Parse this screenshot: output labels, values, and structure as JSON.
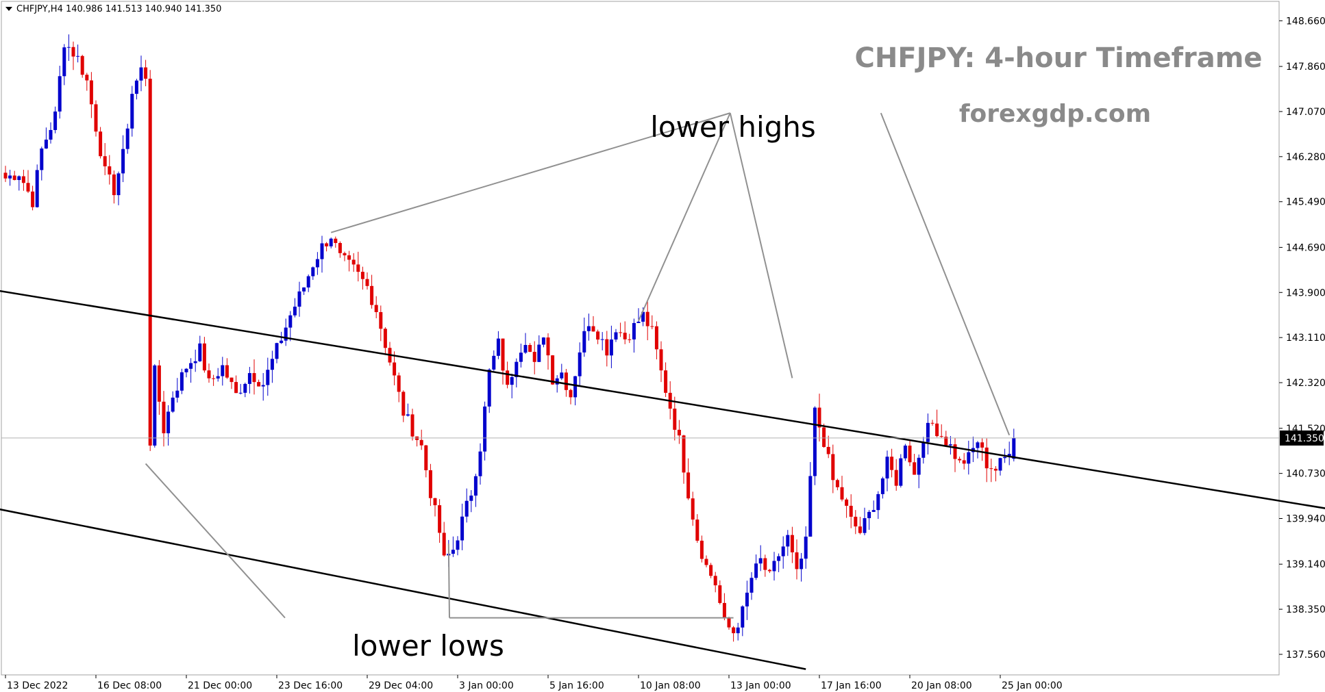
{
  "header": {
    "symbol_info": "CHFJPY,H4  140.986 141.513 140.940 141.350"
  },
  "chart_data": {
    "type": "candlestick",
    "symbol": "CHFJPY",
    "timeframe": "H4",
    "ohlc_header": {
      "open": 140.986,
      "high": 141.513,
      "low": 140.94,
      "close": 141.35
    },
    "current_price": 141.35,
    "title": "CHFJPY: 4-hour Timeframe",
    "watermark": "forexgdp.com",
    "ylim": [
      137.2,
      149.0
    ],
    "y_ticks": [
      "148.660",
      "147.860",
      "147.070",
      "146.280",
      "145.490",
      "144.690",
      "143.900",
      "143.110",
      "142.320",
      "141.520",
      "140.730",
      "139.940",
      "139.140",
      "138.350",
      "137.560"
    ],
    "x_ticks": [
      "13 Dec 2022",
      "16 Dec 08:00",
      "21 Dec 00:00",
      "23 Dec 16:00",
      "29 Dec 04:00",
      "3 Jan 00:00",
      "5 Jan 16:00",
      "10 Jan 08:00",
      "13 Jan 00:00",
      "17 Jan 16:00",
      "20 Jan 08:00",
      "25 Jan 00:00"
    ],
    "x_tick_index": [
      0,
      20,
      40,
      60,
      80,
      100,
      120,
      140,
      160,
      180,
      200,
      220
    ],
    "bar_count": 300,
    "close_path": [
      [
        0,
        145.9
      ],
      [
        3,
        146.0
      ],
      [
        6,
        145.5
      ],
      [
        8,
        146.4
      ],
      [
        11,
        147.0
      ],
      [
        13,
        148.3
      ],
      [
        16,
        148.0
      ],
      [
        18,
        147.6
      ],
      [
        20,
        146.8
      ],
      [
        22,
        146.0
      ],
      [
        24,
        145.7
      ],
      [
        26,
        146.3
      ],
      [
        28,
        147.4
      ],
      [
        30,
        147.8
      ],
      [
        31,
        147.7
      ],
      [
        32,
        141.3
      ],
      [
        33,
        142.5
      ],
      [
        35,
        141.5
      ],
      [
        37,
        142.1
      ],
      [
        40,
        142.6
      ],
      [
        43,
        142.9
      ],
      [
        45,
        142.3
      ],
      [
        48,
        142.6
      ],
      [
        51,
        142.1
      ],
      [
        54,
        142.5
      ],
      [
        57,
        142.3
      ],
      [
        60,
        142.9
      ],
      [
        63,
        143.5
      ],
      [
        66,
        144.0
      ],
      [
        68,
        144.4
      ],
      [
        70,
        144.7
      ],
      [
        72,
        144.9
      ],
      [
        74,
        144.5
      ],
      [
        77,
        144.3
      ],
      [
        80,
        144.0
      ],
      [
        82,
        143.6
      ],
      [
        84,
        143.0
      ],
      [
        86,
        142.4
      ],
      [
        88,
        141.8
      ],
      [
        90,
        141.5
      ],
      [
        92,
        141.2
      ],
      [
        94,
        140.4
      ],
      [
        96,
        139.7
      ],
      [
        97,
        139.2
      ],
      [
        99,
        139.4
      ],
      [
        101,
        139.9
      ],
      [
        103,
        140.4
      ],
      [
        105,
        141.2
      ],
      [
        107,
        142.5
      ],
      [
        109,
        143.0
      ],
      [
        111,
        142.2
      ],
      [
        113,
        142.8
      ],
      [
        115,
        143.1
      ],
      [
        117,
        142.6
      ],
      [
        119,
        143.2
      ],
      [
        121,
        142.4
      ],
      [
        123,
        142.5
      ],
      [
        125,
        142.1
      ],
      [
        127,
        142.9
      ],
      [
        129,
        143.4
      ],
      [
        131,
        143.2
      ],
      [
        133,
        142.9
      ],
      [
        135,
        143.3
      ],
      [
        137,
        143.1
      ],
      [
        139,
        143.3
      ],
      [
        141,
        143.5
      ],
      [
        143,
        143.2
      ],
      [
        145,
        142.5
      ],
      [
        147,
        141.9
      ],
      [
        149,
        141.3
      ],
      [
        151,
        140.4
      ],
      [
        153,
        139.6
      ],
      [
        155,
        139.1
      ],
      [
        157,
        138.8
      ],
      [
        159,
        138.1
      ],
      [
        161,
        137.95
      ],
      [
        163,
        138.3
      ],
      [
        165,
        138.9
      ],
      [
        167,
        139.2
      ],
      [
        169,
        138.9
      ],
      [
        171,
        139.3
      ],
      [
        173,
        139.6
      ],
      [
        175,
        138.95
      ],
      [
        177,
        139.5
      ],
      [
        179,
        141.8
      ],
      [
        181,
        141.3
      ],
      [
        183,
        140.6
      ],
      [
        185,
        140.3
      ],
      [
        187,
        139.9
      ],
      [
        189,
        139.7
      ],
      [
        191,
        140.0
      ],
      [
        193,
        140.4
      ],
      [
        195,
        140.9
      ],
      [
        197,
        140.6
      ],
      [
        199,
        141.3
      ],
      [
        201,
        140.7
      ],
      [
        203,
        141.4
      ],
      [
        205,
        141.6
      ],
      [
        207,
        141.4
      ],
      [
        209,
        141.2
      ],
      [
        211,
        140.9
      ],
      [
        213,
        141.0
      ],
      [
        215,
        141.3
      ],
      [
        217,
        140.9
      ],
      [
        219,
        140.8
      ],
      [
        221,
        141.0
      ],
      [
        223,
        141.35
      ]
    ],
    "lines": [
      {
        "name": "upper-channel",
        "from": [
          -80,
          144.95
        ],
        "to": [
          301,
          140.0
        ]
      },
      {
        "name": "lower-channel",
        "from": [
          -84,
          141.4
        ],
        "to": [
          177,
          137.3
        ]
      }
    ],
    "annotations": [
      {
        "text": "lower highs",
        "anchor": [
          183,
          146.9
        ],
        "pointers": [
          [
            72,
            144.95
          ],
          [
            140,
            143.4
          ],
          [
            174,
            142.4
          ],
          [
            222,
            141.4
          ]
        ]
      },
      {
        "text": "lower lows",
        "anchor": [
          80,
          137.9
        ],
        "pointers": [
          [
            31,
            140.9
          ],
          [
            98,
            139.5
          ],
          [
            161,
            138.2
          ]
        ]
      }
    ],
    "colors": {
      "up": "#0000cc",
      "down": "#e00000",
      "lines": "#000000",
      "pointers": "#909090",
      "price_line": "#b0b0b0",
      "price_box": "#000000"
    }
  }
}
